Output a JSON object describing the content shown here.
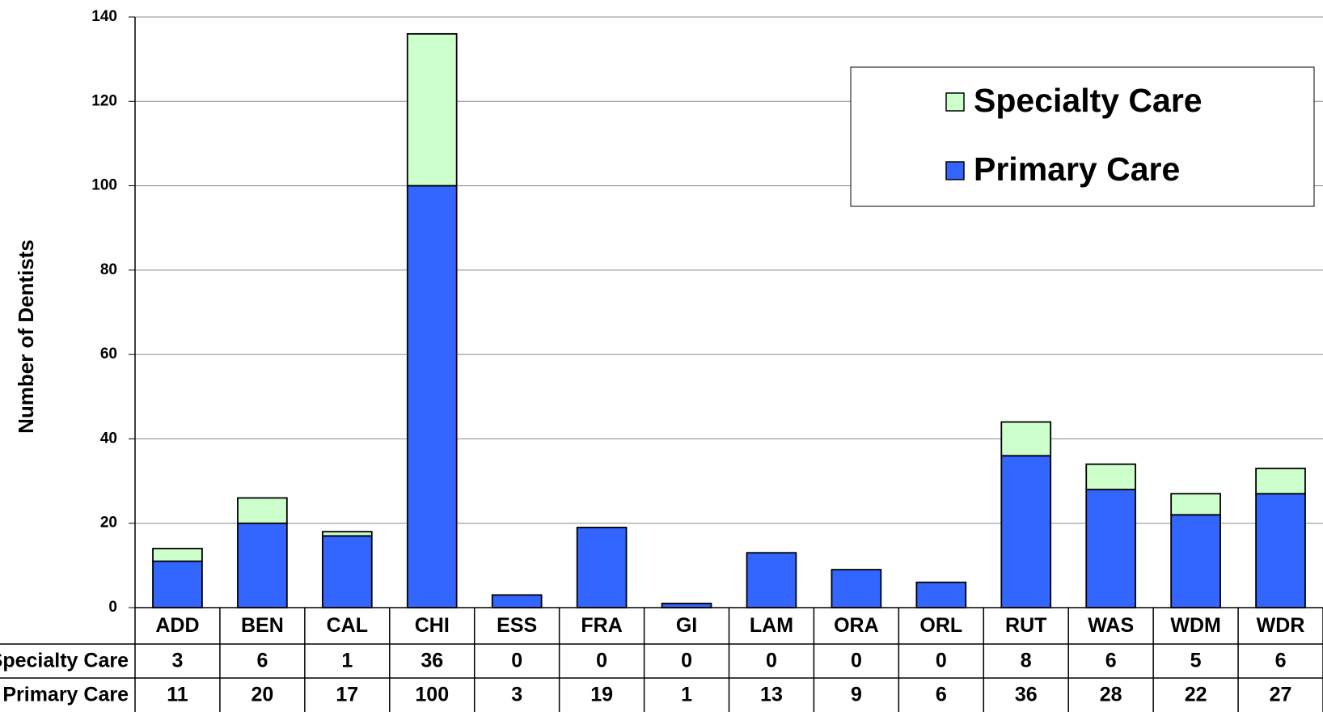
{
  "chart_data": {
    "type": "bar",
    "stacked": true,
    "y_label": "Number of Dentists",
    "categories": [
      "ADD",
      "BEN",
      "CAL",
      "CHI",
      "ESS",
      "FRA",
      "GI",
      "LAM",
      "ORA",
      "ORL",
      "RUT",
      "WAS",
      "WDM",
      "WDR"
    ],
    "series": [
      {
        "name": "Primary Care",
        "color": "#3366ff",
        "values": [
          11,
          20,
          17,
          100,
          3,
          19,
          1,
          13,
          9,
          6,
          36,
          28,
          22,
          27
        ]
      },
      {
        "name": "Specialty Care",
        "color": "#ccffcc",
        "values": [
          3,
          6,
          1,
          36,
          0,
          0,
          0,
          0,
          0,
          0,
          8,
          6,
          5,
          6
        ]
      }
    ],
    "ylim": [
      0,
      140
    ],
    "yticks": [
      0,
      20,
      40,
      60,
      80,
      100,
      120,
      140
    ],
    "grid": true,
    "legend": "upper right",
    "data_table": true
  }
}
